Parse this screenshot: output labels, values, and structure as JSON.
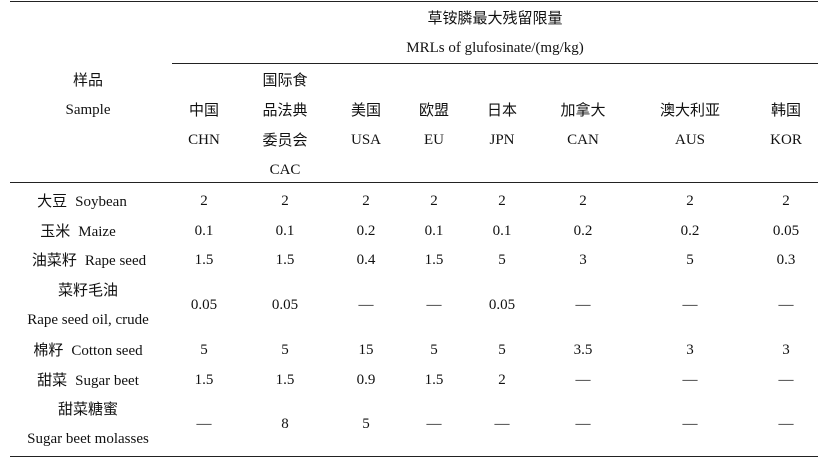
{
  "header": {
    "group_title_cn": "草铵膦最大残留限量",
    "group_title_en": "MRLs of glufosinate/(mg/kg)",
    "sample_cn": "样品",
    "sample_en": "Sample",
    "columns": [
      {
        "cn": "中国",
        "en": "CHN"
      },
      {
        "cn": "国际食",
        "cn2": "品法典",
        "cn3": "委员会",
        "en": "CAC"
      },
      {
        "cn": "美国",
        "en": "USA"
      },
      {
        "cn": "欧盟",
        "en": "EU"
      },
      {
        "cn": "日本",
        "en": "JPN"
      },
      {
        "cn": "加拿大",
        "en": "CAN"
      },
      {
        "cn": "澳大利亚",
        "en": "AUS"
      },
      {
        "cn": "韩国",
        "en": "KOR"
      }
    ]
  },
  "rows": [
    {
      "cn": "大豆",
      "en": "Soybean",
      "values": [
        "2",
        "2",
        "2",
        "2",
        "2",
        "2",
        "2",
        "2"
      ]
    },
    {
      "cn": "玉米",
      "en": "Maize",
      "values": [
        "0.1",
        "0.1",
        "0.2",
        "0.1",
        "0.1",
        "0.2",
        "0.2",
        "0.05"
      ]
    },
    {
      "cn": "油菜籽",
      "en": "Rape seed",
      "values": [
        "1.5",
        "1.5",
        "0.4",
        "1.5",
        "5",
        "3",
        "5",
        "0.3"
      ]
    },
    {
      "cn": "菜籽毛油",
      "en": "Rape seed oil, crude",
      "values": [
        "0.05",
        "0.05",
        "—",
        "—",
        "0.05",
        "—",
        "—",
        "—"
      ]
    },
    {
      "cn": "棉籽",
      "en": "Cotton seed",
      "values": [
        "5",
        "5",
        "15",
        "5",
        "5",
        "3.5",
        "3",
        "3"
      ]
    },
    {
      "cn": "甜菜",
      "en": "Sugar beet",
      "values": [
        "1.5",
        "1.5",
        "0.9",
        "1.5",
        "2",
        "—",
        "—",
        "—"
      ]
    },
    {
      "cn": "甜菜糖蜜",
      "en": "Sugar beet molasses",
      "values": [
        "—",
        "8",
        "5",
        "—",
        "—",
        "—",
        "—",
        "—"
      ]
    }
  ]
}
